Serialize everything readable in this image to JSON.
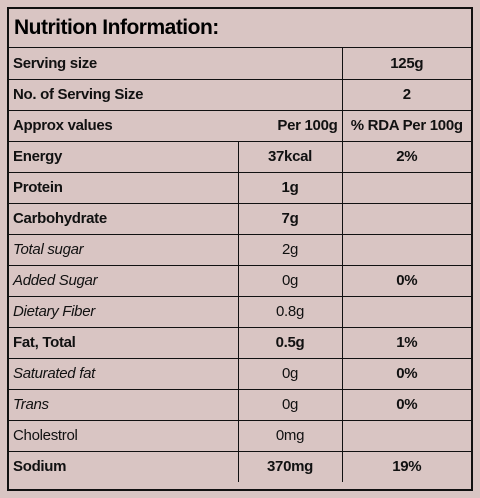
{
  "header": {
    "title": "Nutrition Information:"
  },
  "table": {
    "rows": [
      [
        "Serving size",
        "125g"
      ],
      [
        "No. of Serving Size",
        "2"
      ],
      [
        "Approx values",
        "Per 100g",
        "% RDA Per 100g"
      ],
      [
        "Energy",
        "37kcal",
        "2%"
      ],
      [
        "Protein",
        "1g"
      ],
      [
        "Carbohydrate",
        "7g"
      ],
      [
        "Total sugar",
        "2g"
      ],
      [
        "Added Sugar",
        "0g",
        "0%"
      ],
      [
        "Dietary Fiber",
        "0.8g"
      ],
      [
        "Fat, Total",
        "0.5g",
        "1%"
      ],
      [
        "Saturated fat",
        "0g",
        "0%"
      ],
      [
        "Trans",
        "0g",
        "0%"
      ],
      [
        "Cholestrol",
        "0mg"
      ],
      [
        "Sodium",
        "370mg",
        "19%"
      ]
    ]
  }
}
